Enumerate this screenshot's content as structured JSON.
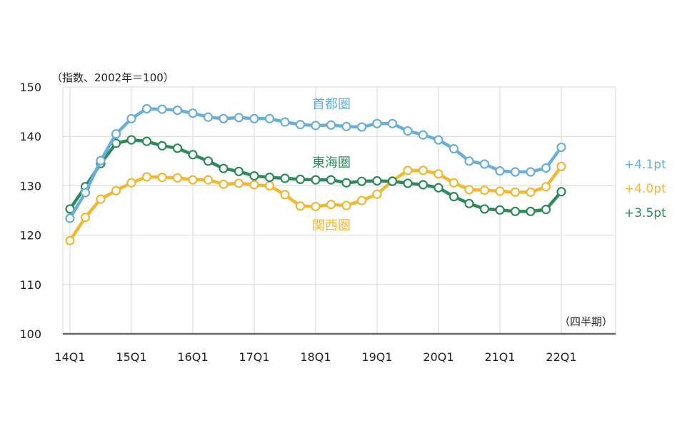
{
  "chart_data": {
    "type": "line",
    "unit_note": "（指数、2002年＝100）",
    "period_note": "（四半期）",
    "ylim": [
      100,
      150
    ],
    "yticks": [
      100,
      110,
      120,
      130,
      140,
      150
    ],
    "xticks": [
      "14Q1",
      "15Q1",
      "16Q1",
      "17Q1",
      "18Q1",
      "19Q1",
      "20Q1",
      "21Q1",
      "22Q1"
    ],
    "grid": true,
    "series": [
      {
        "name": "首都圏",
        "color": "#6aafd8",
        "change_label": "+4.1pt",
        "values": [
          123.4,
          128.6,
          135.1,
          140.5,
          143.6,
          145.6,
          145.5,
          145.3,
          144.7,
          143.9,
          143.6,
          143.8,
          143.6,
          143.6,
          142.9,
          142.4,
          142.2,
          142.3,
          142.0,
          141.9,
          142.6,
          142.6,
          141.1,
          140.3,
          139.3,
          137.5,
          135.0,
          134.4,
          133.0,
          132.8,
          132.8,
          133.6,
          137.8
        ]
      },
      {
        "name": "東海圏",
        "color": "#2e8a5a",
        "change_label": "+3.5pt",
        "values": [
          125.3,
          129.8,
          134.5,
          138.6,
          139.3,
          139.0,
          138.1,
          137.6,
          136.3,
          135.0,
          133.5,
          132.9,
          132.0,
          131.7,
          131.5,
          131.3,
          131.2,
          131.2,
          130.6,
          130.9,
          131.0,
          130.9,
          130.5,
          130.2,
          129.6,
          127.8,
          126.4,
          125.3,
          125.1,
          124.8,
          124.8,
          125.2,
          128.8
        ]
      },
      {
        "name": "関西圏",
        "color": "#f2b733",
        "change_label": "+4.0pt",
        "values": [
          118.9,
          123.6,
          127.3,
          129.0,
          130.6,
          131.8,
          131.7,
          131.6,
          131.2,
          131.2,
          130.3,
          130.5,
          130.2,
          130.0,
          128.2,
          125.9,
          125.8,
          126.2,
          126.0,
          127.0,
          128.3,
          131.0,
          133.1,
          133.1,
          132.4,
          130.6,
          129.2,
          129.1,
          128.9,
          128.7,
          128.7,
          129.8,
          133.9
        ]
      }
    ]
  }
}
